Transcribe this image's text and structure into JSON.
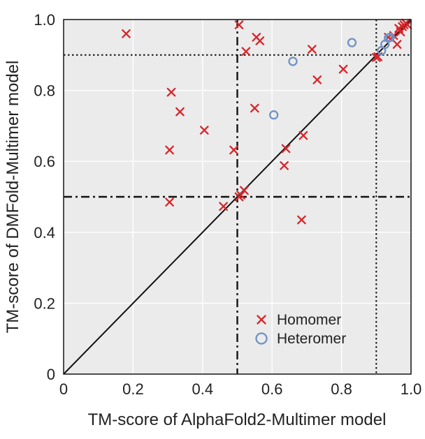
{
  "chart_data": {
    "type": "scatter",
    "xlabel": "TM-score of AlphaFold2-Multimer model",
    "ylabel": "TM-score of DMFold-Multimer model",
    "xlim": [
      0,
      1.0
    ],
    "ylim": [
      0,
      1.0
    ],
    "x_ticks": [
      0,
      0.2,
      0.4,
      0.6,
      0.8,
      1.0
    ],
    "y_ticks": [
      0,
      0.2,
      0.4,
      0.6,
      0.8,
      1.0
    ],
    "x_tick_labels": [
      "0",
      "0.2",
      "0.4",
      "0.6",
      "0.8",
      "1.0"
    ],
    "y_tick_labels": [
      "0",
      "0.2",
      "0.4",
      "0.6",
      "0.8",
      "1.0"
    ],
    "grid": true,
    "background_color": "#ebebeb",
    "legend_position": "lower-right",
    "reference_lines": [
      {
        "kind": "diagonal",
        "style": "solid",
        "from": [
          0,
          0
        ],
        "to": [
          1,
          1
        ]
      },
      {
        "kind": "vertical",
        "x": 0.5,
        "style": "dash-dot"
      },
      {
        "kind": "horizontal",
        "y": 0.5,
        "style": "dash-dot"
      },
      {
        "kind": "vertical",
        "x": 0.9,
        "style": "dotted"
      },
      {
        "kind": "horizontal",
        "y": 0.9,
        "style": "dotted"
      }
    ],
    "series": [
      {
        "name": "Homomer",
        "marker": "x",
        "color": "#d7262b",
        "points": [
          [
            0.18,
            0.96
          ],
          [
            0.31,
            0.795
          ],
          [
            0.335,
            0.74
          ],
          [
            0.305,
            0.632
          ],
          [
            0.305,
            0.485
          ],
          [
            0.405,
            0.688
          ],
          [
            0.49,
            0.632
          ],
          [
            0.46,
            0.473
          ],
          [
            0.505,
            0.5
          ],
          [
            0.51,
            0.505
          ],
          [
            0.52,
            0.518
          ],
          [
            0.505,
            0.985
          ],
          [
            0.525,
            0.91
          ],
          [
            0.555,
            0.95
          ],
          [
            0.565,
            0.94
          ],
          [
            0.55,
            0.75
          ],
          [
            0.635,
            0.588
          ],
          [
            0.64,
            0.636
          ],
          [
            0.685,
            0.435
          ],
          [
            0.69,
            0.673
          ],
          [
            0.715,
            0.916
          ],
          [
            0.73,
            0.83
          ],
          [
            0.805,
            0.86
          ],
          [
            0.9,
            0.893
          ],
          [
            0.905,
            0.895
          ],
          [
            0.935,
            0.95
          ],
          [
            0.95,
            0.955
          ],
          [
            0.96,
            0.93
          ],
          [
            0.965,
            0.975
          ],
          [
            0.975,
            0.98
          ],
          [
            0.98,
            0.985
          ],
          [
            0.985,
            0.99
          ],
          [
            0.99,
            0.985
          ],
          [
            0.97,
            0.965
          ]
        ]
      },
      {
        "name": "Heteromer",
        "marker": "o",
        "color": "#7192c3",
        "points": [
          [
            0.605,
            0.731
          ],
          [
            0.66,
            0.882
          ],
          [
            0.83,
            0.935
          ],
          [
            0.915,
            0.912
          ],
          [
            0.925,
            0.93
          ],
          [
            0.935,
            0.948
          ],
          [
            0.94,
            0.95
          ]
        ]
      }
    ]
  }
}
